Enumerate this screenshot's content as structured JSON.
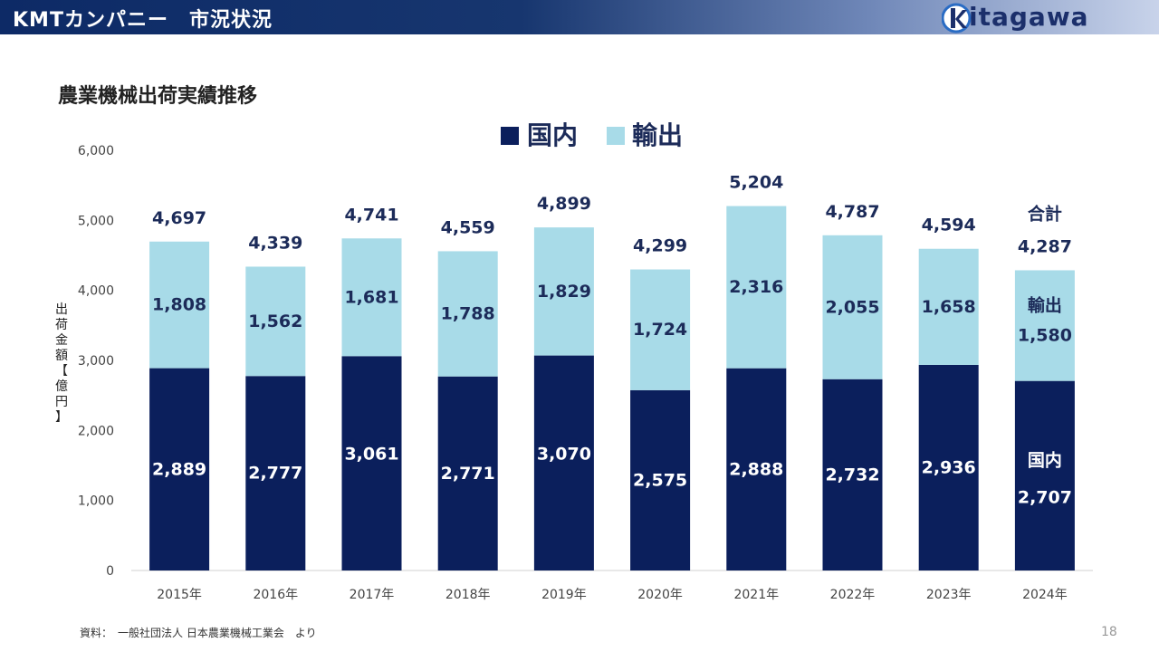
{
  "header": {
    "title": "KMTカンパニー　市況状況",
    "logo_text": "itagawa",
    "logo_letter": "k"
  },
  "page_title": "農業機械出荷実績推移",
  "footer": {
    "source": "資料：　一般社団法人 日本農業機械工業会　より",
    "page_number": "18"
  },
  "colors": {
    "domestic": "#0b1f5c",
    "export": "#a8dbe8",
    "header_dark": "#0d2a66"
  },
  "chart_data": {
    "type": "bar",
    "stacked": true,
    "title": "",
    "ylabel": "出荷金額【億円】",
    "xlabel": "",
    "ylim": [
      0,
      6000
    ],
    "yticks": [
      "0",
      "1,000",
      "2,000",
      "3,000",
      "4,000",
      "5,000",
      "6,000"
    ],
    "categories": [
      "2015年",
      "2016年",
      "2017年",
      "2018年",
      "2019年",
      "2020年",
      "2021年",
      "2022年",
      "2023年",
      "2024年"
    ],
    "series": [
      {
        "name": "国内",
        "values": [
          2889,
          2777,
          3061,
          2771,
          3070,
          2575,
          2888,
          2732,
          2936,
          2707
        ],
        "labels": [
          "2,889",
          "2,777",
          "3,061",
          "2,771",
          "3,070",
          "2,575",
          "2,888",
          "2,732",
          "2,936",
          "2,707"
        ]
      },
      {
        "name": "輸出",
        "values": [
          1808,
          1562,
          1681,
          1788,
          1829,
          1724,
          2316,
          2055,
          1658,
          1580
        ],
        "labels": [
          "1,808",
          "1,562",
          "1,681",
          "1,788",
          "1,829",
          "1,724",
          "2,316",
          "2,055",
          "1,658",
          "1,580"
        ]
      }
    ],
    "totals": [
      4697,
      4339,
      4741,
      4559,
      4899,
      4299,
      5204,
      4787,
      4594,
      4287
    ],
    "total_labels": [
      "4,697",
      "4,339",
      "4,741",
      "4,559",
      "4,899",
      "4,299",
      "5,204",
      "4,787",
      "4,594",
      "4,287"
    ],
    "last_bar_annotations": {
      "total": "合計",
      "export": "輸出",
      "domestic": "国内"
    },
    "legend": {
      "position": "top-center",
      "items": [
        "国内",
        "輸出"
      ]
    },
    "grid": false
  }
}
